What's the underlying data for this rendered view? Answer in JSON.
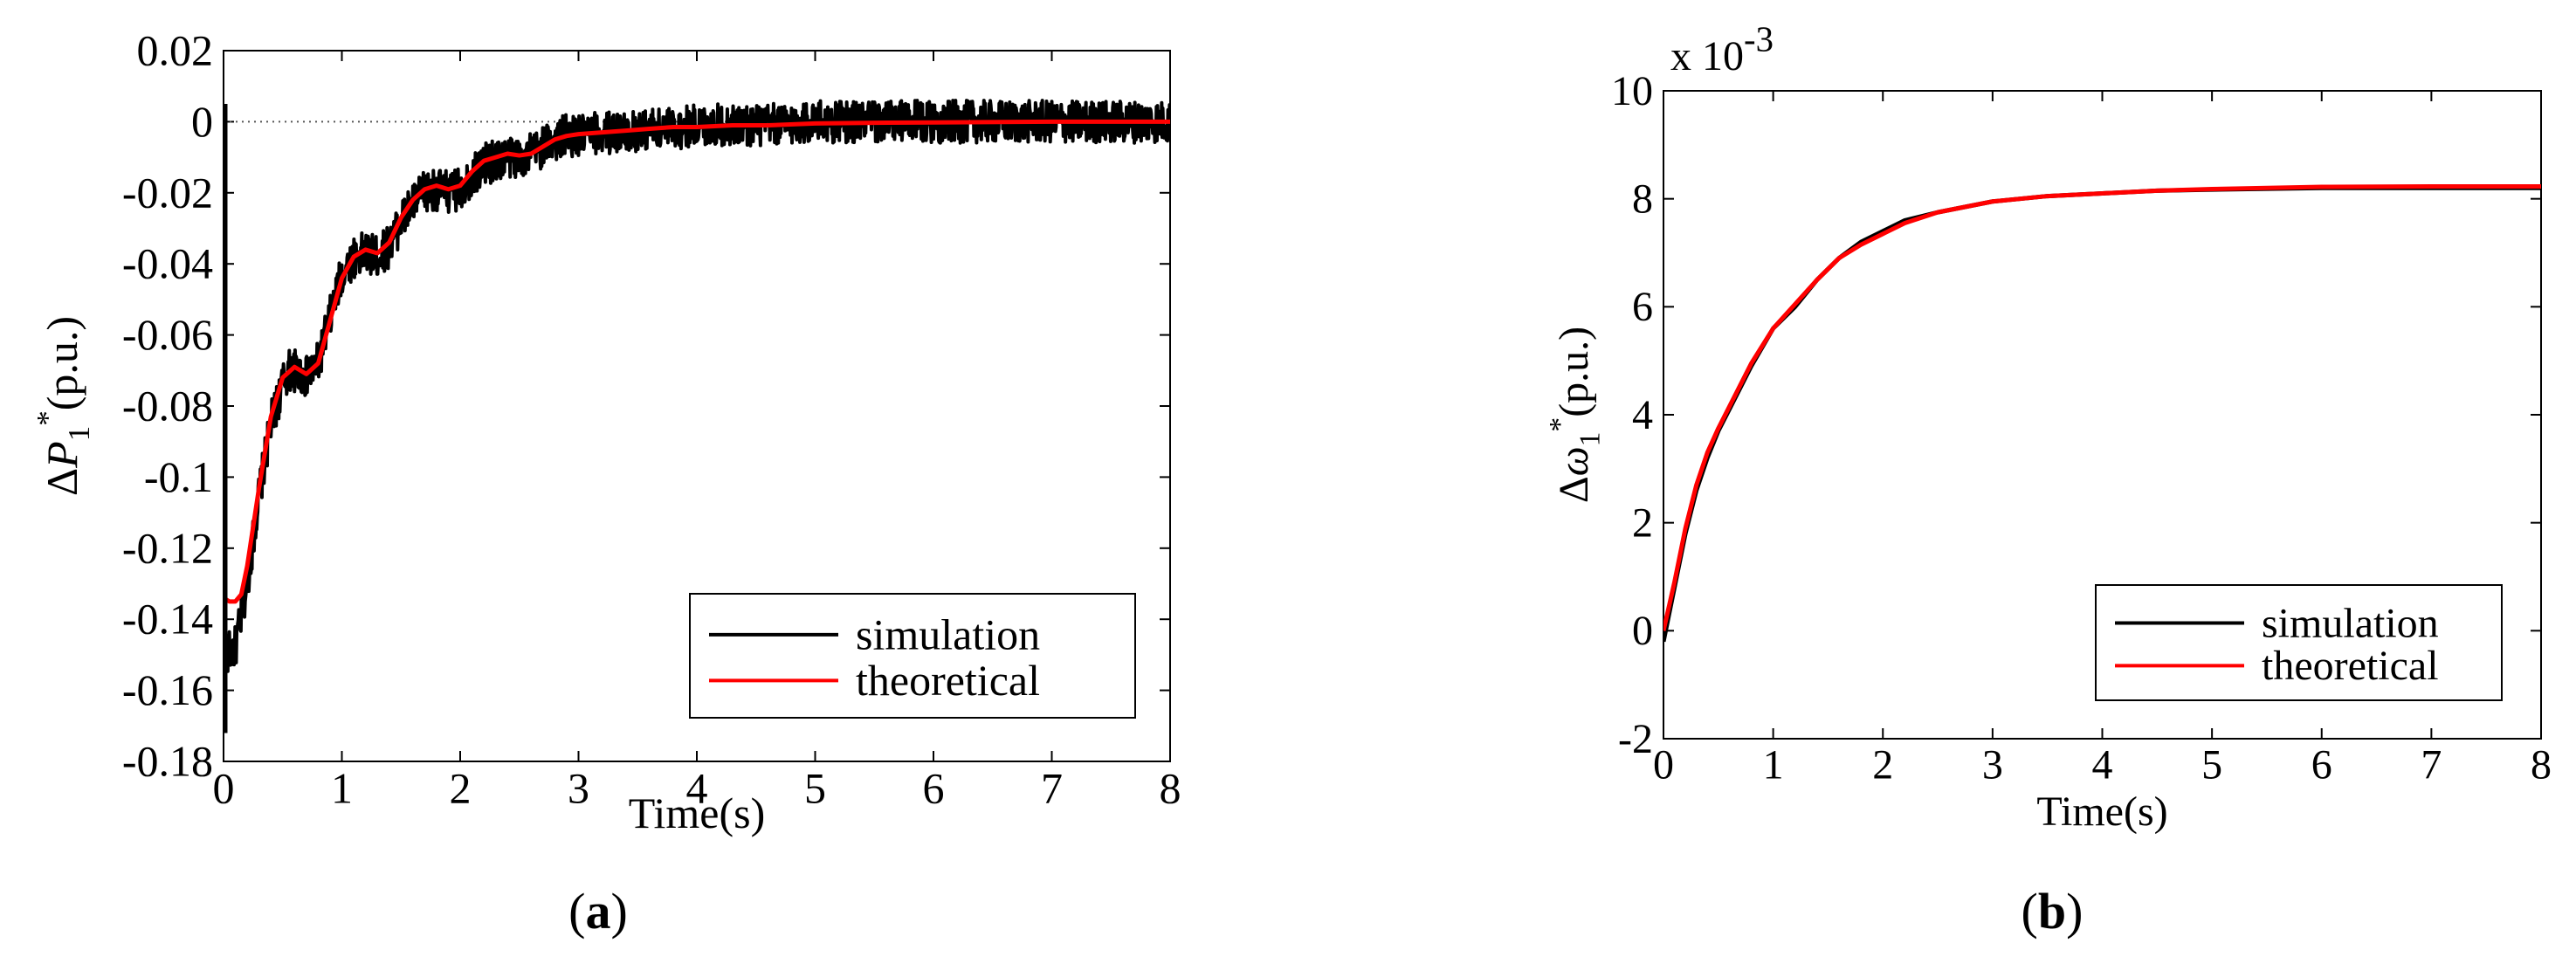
{
  "chart_data": [
    {
      "type": "line",
      "panel_label": "a",
      "title": "",
      "xlabel": "Time(s)",
      "ylabel": {
        "prefix": "Δ",
        "symbol": "P",
        "sub": "1",
        "sup": "*",
        "unit": "(p.u.)"
      },
      "xlim": [
        0,
        8
      ],
      "ylim": [
        -0.18,
        0.02
      ],
      "xticks": [
        "0",
        "1",
        "2",
        "3",
        "4",
        "5",
        "6",
        "7",
        "8"
      ],
      "yticks": [
        "0.02",
        "0",
        "-0.02",
        "-0.04",
        "-0.06",
        "-0.08",
        "-0.1",
        "-0.12",
        "-0.14",
        "-0.16",
        "-0.18"
      ],
      "grid": false,
      "reference_line": {
        "y": 0,
        "style": "dotted"
      },
      "legend": {
        "position": "bottom-right",
        "entries": [
          "simulation",
          "theoretical"
        ]
      },
      "series": [
        {
          "name": "simulation",
          "color": "#000000",
          "noise": 0.006,
          "x": [
            0,
            0.02,
            0.1,
            0.2,
            0.3,
            0.4,
            0.5,
            0.55,
            0.6,
            0.7,
            0.8,
            0.9,
            1.0,
            1.1,
            1.2,
            1.3,
            1.4,
            1.5,
            1.6,
            1.7,
            1.8,
            1.9,
            2.0,
            2.1,
            2.2,
            2.3,
            2.4,
            2.5,
            2.6,
            2.7,
            2.8,
            2.9,
            3.0,
            3.2,
            3.4,
            3.6,
            3.8,
            4.0,
            4.3,
            4.6,
            5.0,
            5.5,
            6.0,
            7.0,
            8.0
          ],
          "y": [
            -0.15,
            -0.15,
            -0.148,
            -0.13,
            -0.105,
            -0.085,
            -0.074,
            -0.07,
            -0.07,
            -0.072,
            -0.068,
            -0.055,
            -0.043,
            -0.038,
            -0.037,
            -0.038,
            -0.035,
            -0.028,
            -0.023,
            -0.02,
            -0.019,
            -0.02,
            -0.019,
            -0.015,
            -0.012,
            -0.011,
            -0.01,
            -0.01,
            -0.009,
            -0.007,
            -0.005,
            -0.004,
            -0.004,
            -0.003,
            -0.003,
            -0.002,
            -0.002,
            -0.001,
            -0.001,
            -0.001,
            0,
            0,
            0,
            0,
            0
          ]
        },
        {
          "name": "theoretical",
          "color": "#ff0000",
          "noise": 0,
          "x": [
            0,
            0.05,
            0.1,
            0.15,
            0.2,
            0.3,
            0.4,
            0.5,
            0.6,
            0.7,
            0.8,
            0.9,
            1.0,
            1.1,
            1.2,
            1.3,
            1.4,
            1.5,
            1.6,
            1.7,
            1.8,
            1.9,
            2.0,
            2.1,
            2.2,
            2.3,
            2.4,
            2.5,
            2.6,
            2.7,
            2.8,
            2.9,
            3.0,
            3.2,
            3.4,
            3.6,
            3.8,
            4.0,
            4.3,
            4.6,
            5.0,
            5.5,
            6.0,
            7.0,
            8.0
          ],
          "y": [
            -0.134,
            -0.135,
            -0.135,
            -0.133,
            -0.125,
            -0.103,
            -0.083,
            -0.072,
            -0.069,
            -0.071,
            -0.068,
            -0.056,
            -0.044,
            -0.038,
            -0.036,
            -0.037,
            -0.034,
            -0.027,
            -0.022,
            -0.019,
            -0.018,
            -0.019,
            -0.018,
            -0.014,
            -0.011,
            -0.01,
            -0.009,
            -0.0095,
            -0.009,
            -0.007,
            -0.005,
            -0.004,
            -0.0035,
            -0.003,
            -0.0025,
            -0.002,
            -0.0015,
            -0.0015,
            -0.001,
            -0.001,
            -0.0005,
            -0.0003,
            -0.0002,
            0,
            0
          ]
        }
      ]
    },
    {
      "type": "line",
      "panel_label": "b",
      "title": "",
      "xlabel": "Time(s)",
      "ylabel": {
        "prefix": "Δ",
        "symbol": "ω",
        "sub": "1",
        "sup": "*",
        "unit": "(p.u.)"
      },
      "scale_note": {
        "base": "x 10",
        "exp": "-3"
      },
      "xlim": [
        0,
        8
      ],
      "ylim": [
        -2,
        10
      ],
      "xticks": [
        "0",
        "1",
        "2",
        "3",
        "4",
        "5",
        "6",
        "7",
        "8"
      ],
      "yticks": [
        "10",
        "8",
        "6",
        "4",
        "2",
        "0",
        "-2"
      ],
      "grid": false,
      "legend": {
        "position": "bottom-right",
        "entries": [
          "simulation",
          "theoretical"
        ]
      },
      "series": [
        {
          "name": "simulation",
          "color": "#000000",
          "noise": 0,
          "x": [
            0,
            0.1,
            0.2,
            0.3,
            0.4,
            0.5,
            0.6,
            0.8,
            1.0,
            1.2,
            1.4,
            1.6,
            1.8,
            2.0,
            2.2,
            2.5,
            3.0,
            3.5,
            4.0,
            4.5,
            5.0,
            6.0,
            7.0,
            8.0
          ],
          "y": [
            -0.2,
            0.8,
            1.8,
            2.6,
            3.2,
            3.7,
            4.1,
            4.9,
            5.6,
            6.0,
            6.5,
            6.9,
            7.2,
            7.4,
            7.6,
            7.75,
            7.95,
            8.05,
            8.1,
            8.15,
            8.17,
            8.2,
            8.2,
            8.2
          ]
        },
        {
          "name": "theoretical",
          "color": "#ff0000",
          "noise": 0,
          "x": [
            0,
            0.1,
            0.2,
            0.3,
            0.4,
            0.5,
            0.6,
            0.8,
            1.0,
            1.2,
            1.4,
            1.6,
            1.8,
            2.0,
            2.2,
            2.5,
            3.0,
            3.5,
            4.0,
            4.5,
            5.0,
            6.0,
            7.0,
            8.0
          ],
          "y": [
            0,
            0.9,
            1.9,
            2.7,
            3.3,
            3.75,
            4.15,
            4.95,
            5.6,
            6.05,
            6.5,
            6.9,
            7.15,
            7.35,
            7.55,
            7.75,
            7.95,
            8.05,
            8.1,
            8.15,
            8.18,
            8.22,
            8.23,
            8.23
          ]
        }
      ]
    }
  ]
}
